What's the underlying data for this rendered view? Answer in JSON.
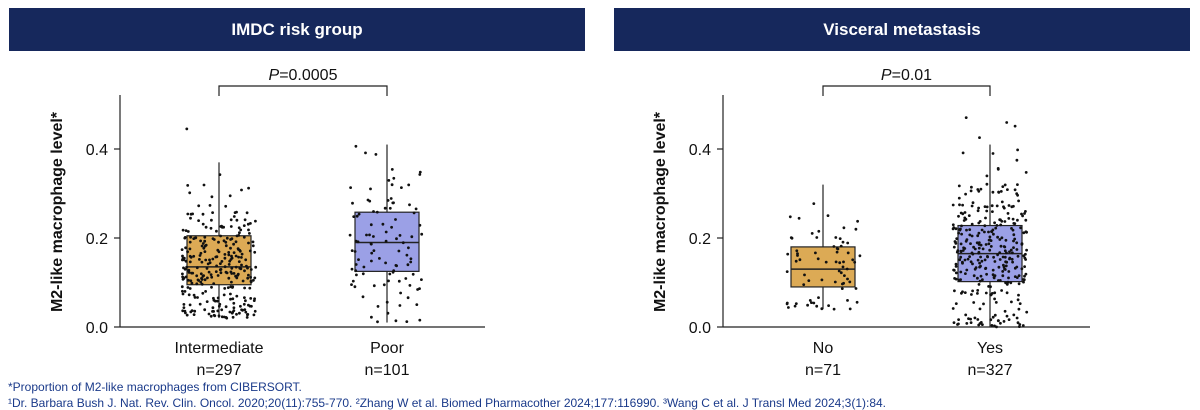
{
  "panels": [
    {
      "header": "IMDC risk group",
      "ylabel": "M2-like macrophage level*",
      "pvalue": {
        "prefix": "P",
        "value": "=0.0005"
      },
      "groups": [
        {
          "name": "Intermediate",
          "n_label": "n=297",
          "color": "#dcaa55",
          "n": 297,
          "min": 0.02,
          "q1": 0.095,
          "median": 0.135,
          "q3": 0.205,
          "max": 0.37,
          "point_max": 0.51
        },
        {
          "name": "Poor",
          "n_label": "n=101",
          "color": "#9ba0e6",
          "n": 101,
          "min": 0.01,
          "q1": 0.125,
          "median": 0.19,
          "q3": 0.258,
          "max": 0.41,
          "point_max": 0.46
        }
      ]
    },
    {
      "header": "Visceral metastasis",
      "ylabel": "M2-like macrophage level*",
      "pvalue": {
        "prefix": "P",
        "value": "=0.01"
      },
      "groups": [
        {
          "name": "No",
          "n_label": "n=71",
          "color": "#dcaa55",
          "n": 71,
          "min": 0.04,
          "q1": 0.09,
          "median": 0.13,
          "q3": 0.18,
          "max": 0.32,
          "point_max": 0.34
        },
        {
          "name": "Yes",
          "n_label": "n=327",
          "color": "#9ba0e6",
          "n": 327,
          "min": 0.0,
          "q1": 0.102,
          "median": 0.165,
          "q3": 0.228,
          "max": 0.41,
          "point_max": 0.51
        }
      ]
    }
  ],
  "chart_data": [
    {
      "type": "box",
      "title": "IMDC risk group",
      "ylabel": "M2-like macrophage level*",
      "categories": [
        "Intermediate",
        "Poor"
      ],
      "n": [
        297,
        101
      ],
      "yticks": [
        "0.0",
        "0.2",
        "0.4"
      ],
      "ylim": [
        0,
        0.52
      ],
      "boxes": [
        {
          "category": "Intermediate",
          "min": 0.02,
          "q1": 0.095,
          "median": 0.135,
          "q3": 0.205,
          "max": 0.37
        },
        {
          "category": "Poor",
          "min": 0.01,
          "q1": 0.125,
          "median": 0.19,
          "q3": 0.258,
          "max": 0.41
        }
      ],
      "annotation": "P=0.0005"
    },
    {
      "type": "box",
      "title": "Visceral metastasis",
      "ylabel": "M2-like macrophage level*",
      "categories": [
        "No",
        "Yes"
      ],
      "n": [
        71,
        327
      ],
      "yticks": [
        "0.0",
        "0.2",
        "0.4"
      ],
      "ylim": [
        0,
        0.52
      ],
      "boxes": [
        {
          "category": "No",
          "min": 0.04,
          "q1": 0.09,
          "median": 0.13,
          "q3": 0.18,
          "max": 0.32
        },
        {
          "category": "Yes",
          "min": 0.0,
          "q1": 0.102,
          "median": 0.165,
          "q3": 0.228,
          "max": 0.41
        }
      ],
      "annotation": "P=0.01"
    }
  ],
  "footnotes": {
    "line1": "*Proportion of M2-like macrophages from CIBERSORT.",
    "line2": "¹Dr. Barbara Bush J. Nat. Rev. Clin. Oncol. 2020;20(11):755-770. ²Zhang W et al. Biomed Pharmacother 2024;177:116990. ³Wang C et al. J Transl Med 2024;3(1):84."
  }
}
